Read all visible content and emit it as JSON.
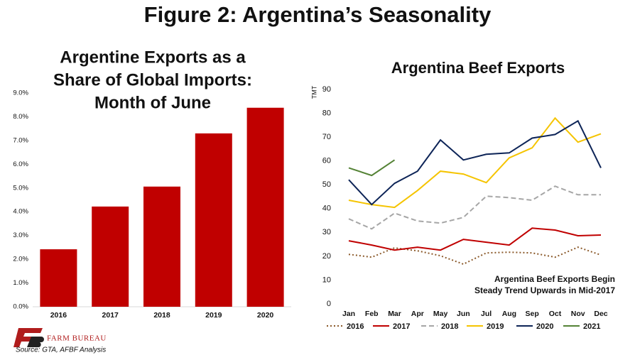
{
  "title": "Figure 2: Argentina’s Seasonality",
  "chart_data": [
    {
      "type": "bar",
      "title": [
        "Argentine Exports as a",
        "Share of Global Imports:",
        "Month of June"
      ],
      "categories": [
        "2016",
        "2017",
        "2018",
        "2019",
        "2020"
      ],
      "values": [
        2.42,
        4.22,
        5.06,
        7.3,
        8.38
      ],
      "color": "#c00000",
      "ylim": [
        0,
        9
      ],
      "yticks": [
        {
          "value": 0,
          "label": "0.0%"
        },
        {
          "value": 1,
          "label": "1.0%"
        },
        {
          "value": 2,
          "label": "2.0%"
        },
        {
          "value": 3,
          "label": "3.0%"
        },
        {
          "value": 4,
          "label": "4.0%"
        },
        {
          "value": 5,
          "label": "5.0%"
        },
        {
          "value": 6,
          "label": "6.0%"
        },
        {
          "value": 7,
          "label": "7.0%"
        },
        {
          "value": 8,
          "label": "8.0%"
        },
        {
          "value": 9,
          "label": "9.0%"
        }
      ],
      "grid": false
    },
    {
      "type": "line",
      "title": "Argentina Beef Exports",
      "ylabel": "TMT",
      "annotation": [
        "Argentina Beef Exports Begin",
        "Steady Trend Upwards in Mid-2017"
      ],
      "categories": [
        "Jan",
        "Feb",
        "Mar",
        "Apr",
        "May",
        "Jun",
        "Jul",
        "Aug",
        "Sep",
        "Oct",
        "Nov",
        "Dec"
      ],
      "series": [
        {
          "name": "2016",
          "color": "#8b5a2b",
          "style": "dotted",
          "values": [
            20.8,
            19.6,
            23.5,
            22.3,
            20.2,
            16.7,
            21.4,
            21.7,
            21.4,
            19.6,
            23.8,
            20.5
          ]
        },
        {
          "name": "2017",
          "color": "#c00000",
          "style": "solid",
          "values": [
            26.5,
            24.7,
            22.6,
            23.8,
            22.6,
            27.1,
            25.9,
            24.7,
            31.8,
            31,
            28.6,
            28.9
          ]
        },
        {
          "name": "2018",
          "color": "#a6a6a6",
          "style": "dashed",
          "values": [
            35.7,
            31.5,
            38.1,
            34.8,
            33.9,
            36.3,
            45.2,
            44.6,
            43.5,
            49.4,
            45.8,
            45.8
          ]
        },
        {
          "name": "2019",
          "color": "#f5c400",
          "style": "solid",
          "values": [
            43.5,
            41.7,
            40.5,
            47.6,
            55.7,
            54.5,
            50.9,
            61.3,
            65.5,
            78,
            67.9,
            71.4
          ]
        },
        {
          "name": "2020",
          "color": "#0d2457",
          "style": "solid",
          "values": [
            52.1,
            41.7,
            50.6,
            55.7,
            68.8,
            60.4,
            62.8,
            63.4,
            69.6,
            71.1,
            76.8,
            57.1
          ]
        },
        {
          "name": "2021",
          "color": "#548235",
          "style": "solid",
          "values": [
            57.1,
            53.9,
            60.4,
            null,
            null,
            null,
            null,
            null,
            null,
            null,
            null,
            null
          ]
        }
      ],
      "ylim": [
        0,
        90
      ],
      "yticks": [
        0,
        10,
        20,
        30,
        40,
        50,
        60,
        70,
        80,
        90
      ],
      "grid": false,
      "legend": "bottom"
    }
  ],
  "footer": {
    "logo": "FARM BUREAU",
    "source": "Source:  GTA, AFBF Analysis"
  }
}
